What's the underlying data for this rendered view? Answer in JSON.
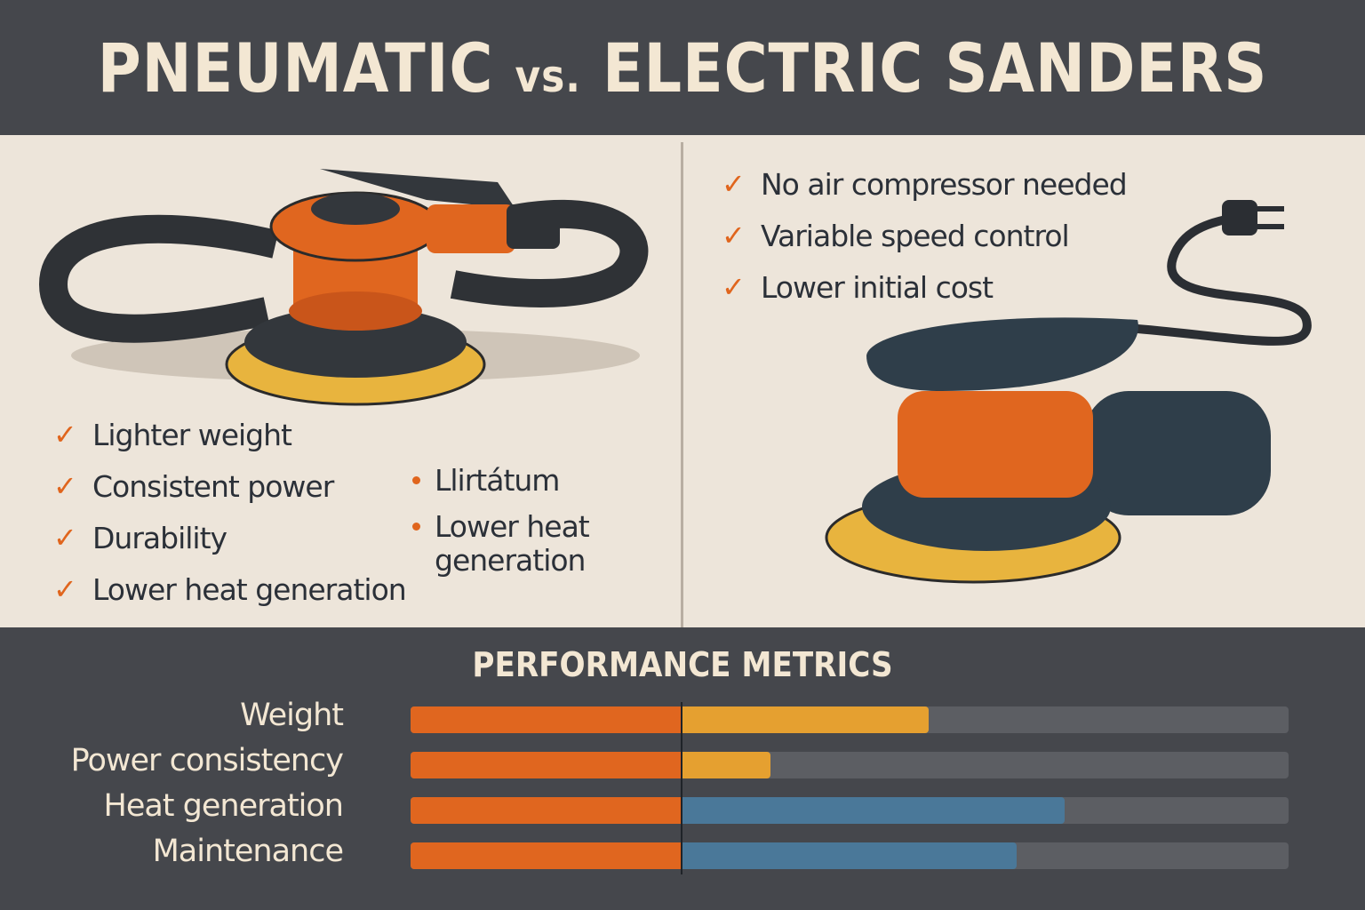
{
  "header": {
    "title_main": "PNEUMATIC",
    "title_vs": "vs.",
    "title_rest": "ELECTRIC SANDERS"
  },
  "pneumatic": {
    "benefits": [
      "Lighter weight",
      "Consistent power",
      "Durability",
      "Lower heat generation"
    ],
    "extra_items": [
      "Llirtátum",
      "Lower heat generation"
    ]
  },
  "electric": {
    "benefits": [
      "No air compressor needed",
      "Variable speed control",
      "Lower initial cost"
    ]
  },
  "metrics": {
    "title": "PERFORMANCE METRICS",
    "rows": [
      {
        "label": "Weight",
        "pneumatic": 0.31,
        "electric_end": 0.59,
        "electric_color": "#e5a030"
      },
      {
        "label": "Power consistency",
        "pneumatic": 0.31,
        "electric_end": 0.41,
        "electric_color": "#e5a030"
      },
      {
        "label": "Heat generation",
        "pneumatic": 0.31,
        "electric_end": 0.745,
        "electric_color": "#4a7899"
      },
      {
        "label": "Maintenance",
        "pneumatic": 0.31,
        "electric_end": 0.69,
        "electric_color": "#4a7899"
      }
    ]
  },
  "colors": {
    "orange": "#e0661f",
    "dark": "#45474c",
    "cream": "#ede5da",
    "track": "#5c5e63"
  }
}
